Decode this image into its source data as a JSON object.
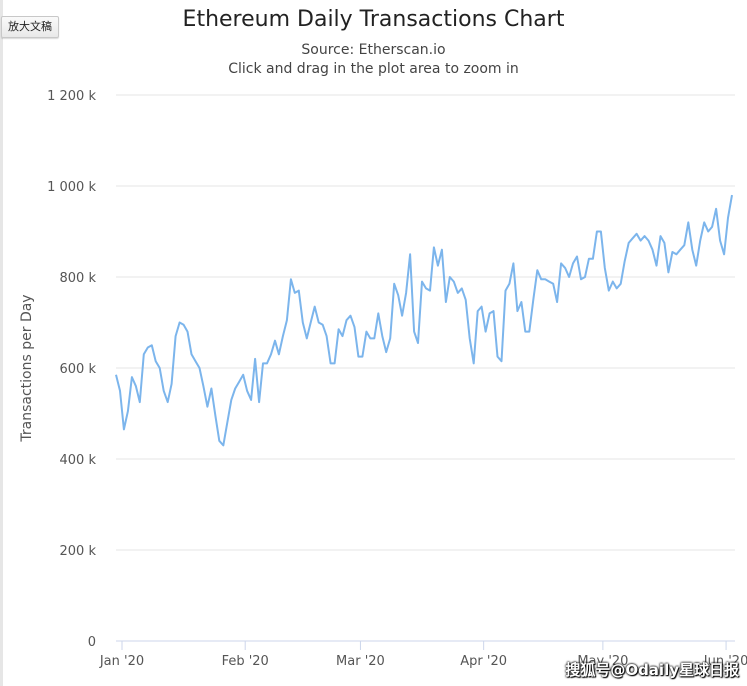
{
  "app": {
    "zoom_button_label": "放大文稿"
  },
  "watermark": {
    "text": "搜狐号@Odaily星球日报"
  },
  "colors": {
    "line": "#7cb5ec",
    "grid": "#e6e6e6",
    "axis": "#ccd6eb"
  },
  "chart_data": {
    "type": "line",
    "title": "Ethereum Daily Transactions Chart",
    "subtitle": "Source: Etherscan.io",
    "subtitle2": "Click and drag in the plot area to zoom in",
    "xlabel": "",
    "ylabel": "Transactions per Day",
    "ylim": [
      0,
      1200000
    ],
    "yticks": [
      0,
      200000,
      400000,
      600000,
      800000,
      1000000,
      1200000
    ],
    "ytick_labels": [
      "0",
      "200 k",
      "400 k",
      "600 k",
      "800 k",
      "1 000 k",
      "1 200 k"
    ],
    "xticks": [
      {
        "label": "Jan '20",
        "day": 0
      },
      {
        "label": "Feb '20",
        "day": 31
      },
      {
        "label": "Mar '20",
        "day": 60
      },
      {
        "label": "Apr '20",
        "day": 91
      },
      {
        "label": "May '20",
        "day": 121
      },
      {
        "label": "Jun '20",
        "day": 152
      }
    ],
    "x_start_label": "2020-01-01",
    "series": [
      {
        "name": "Transactions",
        "values": [
          585000,
          550000,
          465000,
          505000,
          580000,
          560000,
          525000,
          630000,
          645000,
          650000,
          615000,
          600000,
          550000,
          525000,
          565000,
          670000,
          700000,
          695000,
          680000,
          630000,
          615000,
          600000,
          560000,
          515000,
          555000,
          495000,
          440000,
          430000,
          480000,
          530000,
          555000,
          570000,
          585000,
          550000,
          530000,
          620000,
          525000,
          610000,
          610000,
          630000,
          660000,
          630000,
          670000,
          705000,
          795000,
          765000,
          770000,
          700000,
          665000,
          700000,
          735000,
          700000,
          695000,
          670000,
          610000,
          610000,
          685000,
          670000,
          705000,
          715000,
          690000,
          625000,
          625000,
          680000,
          665000,
          665000,
          720000,
          670000,
          635000,
          665000,
          785000,
          760000,
          715000,
          765000,
          850000,
          680000,
          655000,
          790000,
          775000,
          770000,
          865000,
          825000,
          860000,
          745000,
          800000,
          790000,
          765000,
          775000,
          750000,
          665000,
          610000,
          725000,
          735000,
          680000,
          720000,
          725000,
          625000,
          615000,
          770000,
          785000,
          830000,
          725000,
          745000,
          680000,
          680000,
          750000,
          815000,
          795000,
          795000,
          790000,
          785000,
          745000,
          830000,
          820000,
          800000,
          830000,
          845000,
          795000,
          800000,
          840000,
          840000,
          900000,
          900000,
          820000,
          770000,
          790000,
          775000,
          785000,
          835000,
          875000,
          885000,
          895000,
          880000,
          890000,
          880000,
          860000,
          825000,
          890000,
          875000,
          810000,
          855000,
          850000,
          860000,
          870000,
          920000,
          860000,
          825000,
          880000,
          920000,
          900000,
          910000,
          950000,
          880000,
          850000,
          930000,
          980000
        ]
      }
    ]
  }
}
